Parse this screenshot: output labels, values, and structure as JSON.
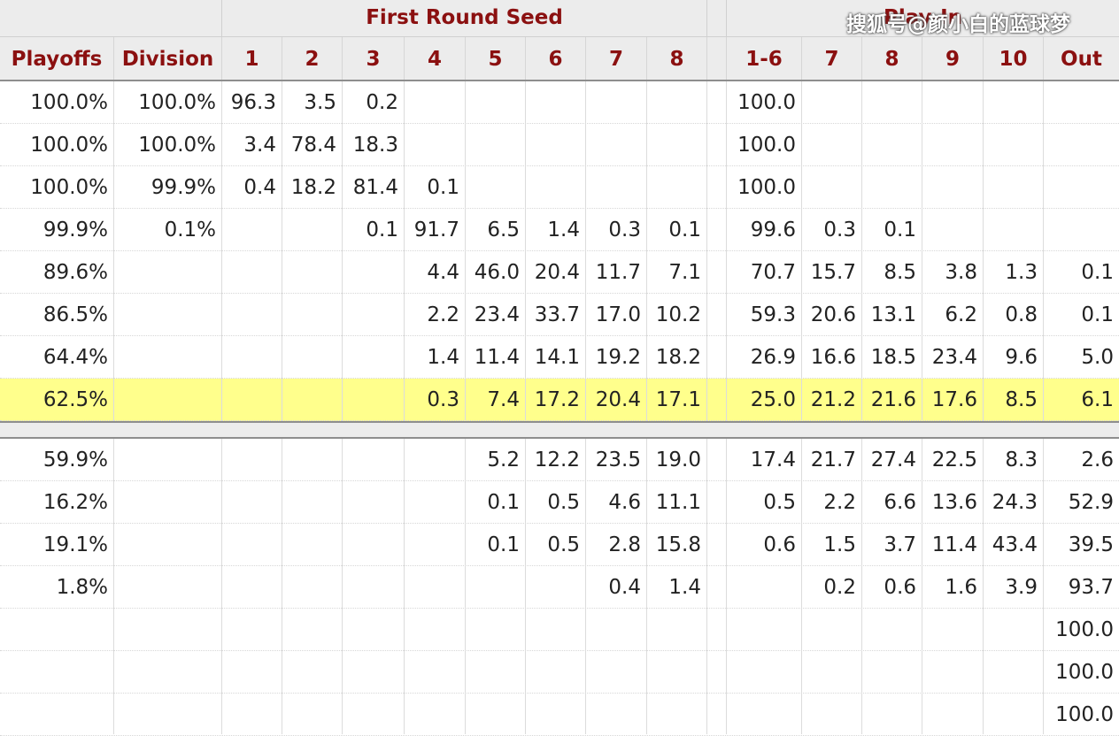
{
  "header": {
    "groups": [
      "",
      "First Round Seed",
      "",
      "Play-In"
    ],
    "columns": [
      "Playoffs",
      "Division",
      "1",
      "2",
      "3",
      "4",
      "5",
      "6",
      "7",
      "8",
      "",
      "1-6",
      "7",
      "8",
      "9",
      "10",
      "Out"
    ]
  },
  "watermark": "搜狐号@颜小白的蓝球梦",
  "highlight_row": 7,
  "rows": [
    [
      "100.0%",
      "100.0%",
      "96.3",
      "3.5",
      "0.2",
      "",
      "",
      "",
      "",
      "",
      "",
      "100.0",
      "",
      "",
      "",
      "",
      ""
    ],
    [
      "100.0%",
      "100.0%",
      "3.4",
      "78.4",
      "18.3",
      "",
      "",
      "",
      "",
      "",
      "",
      "100.0",
      "",
      "",
      "",
      "",
      ""
    ],
    [
      "100.0%",
      "99.9%",
      "0.4",
      "18.2",
      "81.4",
      "0.1",
      "",
      "",
      "",
      "",
      "",
      "100.0",
      "",
      "",
      "",
      "",
      ""
    ],
    [
      "99.9%",
      "0.1%",
      "",
      "",
      "0.1",
      "91.7",
      "6.5",
      "1.4",
      "0.3",
      "0.1",
      "",
      "99.6",
      "0.3",
      "0.1",
      "",
      "",
      ""
    ],
    [
      "89.6%",
      "",
      "",
      "",
      "",
      "4.4",
      "46.0",
      "20.4",
      "11.7",
      "7.1",
      "",
      "70.7",
      "15.7",
      "8.5",
      "3.8",
      "1.3",
      "0.1"
    ],
    [
      "86.5%",
      "",
      "",
      "",
      "",
      "2.2",
      "23.4",
      "33.7",
      "17.0",
      "10.2",
      "",
      "59.3",
      "20.6",
      "13.1",
      "6.2",
      "0.8",
      "0.1"
    ],
    [
      "64.4%",
      "",
      "",
      "",
      "",
      "1.4",
      "11.4",
      "14.1",
      "19.2",
      "18.2",
      "",
      "26.9",
      "16.6",
      "18.5",
      "23.4",
      "9.6",
      "5.0"
    ],
    [
      "62.5%",
      "",
      "",
      "",
      "",
      "0.3",
      "7.4",
      "17.2",
      "20.4",
      "17.1",
      "",
      "25.0",
      "21.2",
      "21.6",
      "17.6",
      "8.5",
      "6.1"
    ],
    [
      "59.9%",
      "",
      "",
      "",
      "",
      "",
      "5.2",
      "12.2",
      "23.5",
      "19.0",
      "",
      "17.4",
      "21.7",
      "27.4",
      "22.5",
      "8.3",
      "2.6"
    ],
    [
      "16.2%",
      "",
      "",
      "",
      "",
      "",
      "0.1",
      "0.5",
      "4.6",
      "11.1",
      "",
      "0.5",
      "2.2",
      "6.6",
      "13.6",
      "24.3",
      "52.9"
    ],
    [
      "19.1%",
      "",
      "",
      "",
      "",
      "",
      "0.1",
      "0.5",
      "2.8",
      "15.8",
      "",
      "0.6",
      "1.5",
      "3.7",
      "11.4",
      "43.4",
      "39.5"
    ],
    [
      "1.8%",
      "",
      "",
      "",
      "",
      "",
      "",
      "",
      "0.4",
      "1.4",
      "",
      "",
      "0.2",
      "0.6",
      "1.6",
      "3.9",
      "93.7"
    ],
    [
      "",
      "",
      "",
      "",
      "",
      "",
      "",
      "",
      "",
      "",
      "",
      "",
      "",
      "",
      "",
      "",
      "100.0"
    ],
    [
      "",
      "",
      "",
      "",
      "",
      "",
      "",
      "",
      "",
      "",
      "",
      "",
      "",
      "",
      "",
      "",
      "100.0"
    ],
    [
      "",
      "",
      "",
      "",
      "",
      "",
      "",
      "",
      "",
      "",
      "",
      "",
      "",
      "",
      "",
      "",
      "100.0"
    ]
  ]
}
